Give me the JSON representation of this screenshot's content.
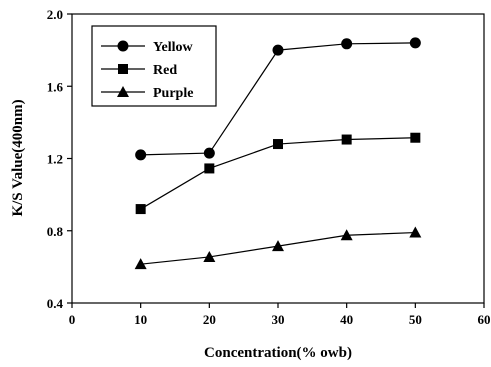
{
  "chart_data": {
    "type": "line",
    "title": "",
    "xlabel": "Concentration(% owb)",
    "ylabel": "K/S Value(400nm)",
    "xlim": [
      0,
      60
    ],
    "ylim": [
      0.4,
      2.0
    ],
    "xticks": [
      "0",
      "10",
      "20",
      "30",
      "40",
      "50",
      "60"
    ],
    "yticks": [
      "0.4",
      "0.8",
      "1.2",
      "1.6",
      "2.0"
    ],
    "grid": false,
    "legend_position": "top-left",
    "x": [
      10,
      20,
      30,
      40,
      50
    ],
    "series": [
      {
        "name": "Yellow",
        "marker": "circle",
        "values": [
          1.22,
          1.23,
          1.8,
          1.835,
          1.84
        ]
      },
      {
        "name": "Red",
        "marker": "square",
        "values": [
          0.92,
          1.145,
          1.28,
          1.305,
          1.315
        ]
      },
      {
        "name": "Purple",
        "marker": "triangle",
        "values": [
          0.615,
          0.655,
          0.715,
          0.775,
          0.79
        ]
      }
    ],
    "colors": {
      "line": "#000000",
      "background": "#ffffff"
    }
  }
}
